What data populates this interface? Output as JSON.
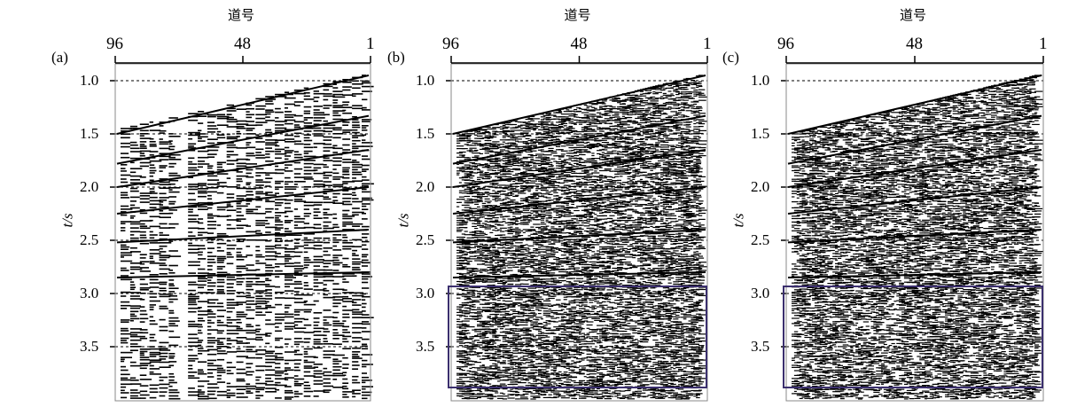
{
  "figure": {
    "panels": [
      {
        "label": "(a)",
        "x_title": "道号",
        "x_ticks": [
          "96",
          "48",
          "1"
        ],
        "y_title": "t/s",
        "y_ticks": [
          "1.0",
          "1.5",
          "2.0",
          "2.5",
          "3.0",
          "3.5"
        ],
        "highlight_box": false
      },
      {
        "label": "(b)",
        "x_title": "道号",
        "x_ticks": [
          "96",
          "48",
          "1"
        ],
        "y_title": "t/s",
        "y_ticks": [
          "1.0",
          "1.5",
          "2.0",
          "2.5",
          "3.0",
          "3.5"
        ],
        "highlight_box": true
      },
      {
        "label": "(c)",
        "x_title": "道号",
        "x_ticks": [
          "96",
          "48",
          "1"
        ],
        "y_title": "t/s",
        "y_ticks": [
          "1.0",
          "1.5",
          "2.0",
          "2.5",
          "3.0",
          "3.5"
        ],
        "highlight_box": true
      }
    ],
    "y_tick_values": [
      1.0,
      1.5,
      2.0,
      2.5,
      3.0,
      3.5
    ],
    "y_range": [
      0.83,
      4.0
    ],
    "highlight_range_s": [
      2.95,
      3.9
    ],
    "box_color": "#3b2f6e"
  }
}
